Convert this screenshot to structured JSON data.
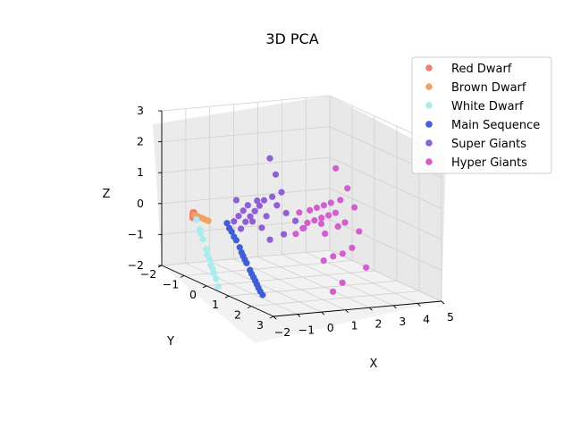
{
  "chart_data": {
    "type": "scatter",
    "projection": "3d",
    "title": "3D PCA",
    "xlabel": "X",
    "ylabel": "Y",
    "zlabel": "Z",
    "xlim": [
      -2,
      5
    ],
    "ylim": [
      -2,
      3
    ],
    "zlim": [
      -2,
      3
    ],
    "x_ticks": [
      "−2",
      "−1",
      "0",
      "1",
      "2",
      "3",
      "4",
      "5"
    ],
    "y_ticks": [
      "−2",
      "−1",
      "0",
      "1",
      "2",
      "3"
    ],
    "z_ticks": [
      "−2",
      "−1",
      "0",
      "1",
      "2",
      "3"
    ],
    "grid": true,
    "legend_position": "top-right",
    "series": [
      {
        "name": "Red Dwarf",
        "color": "#f07c72",
        "points": [
          [
            -1.45,
            -1.2,
            -0.06
          ],
          [
            -1.5,
            -1.15,
            -0.1
          ],
          [
            -1.55,
            -1.1,
            -0.14
          ],
          [
            -1.6,
            -1.05,
            -0.18
          ],
          [
            -1.5,
            -1.1,
            -0.12
          ],
          [
            -1.45,
            -1.15,
            -0.04
          ]
        ]
      },
      {
        "name": "Brown Dwarf",
        "color": "#f4a261",
        "points": [
          [
            -1.3,
            -1.3,
            -0.2
          ],
          [
            -1.2,
            -1.25,
            -0.22
          ],
          [
            -1.1,
            -1.2,
            -0.26
          ],
          [
            -1.0,
            -1.15,
            -0.3
          ],
          [
            -0.9,
            -1.1,
            -0.34
          ],
          [
            -1.15,
            -1.2,
            -0.25
          ],
          [
            -1.05,
            -1.2,
            -0.28
          ],
          [
            -0.95,
            -1.1,
            -0.32
          ]
        ]
      },
      {
        "name": "White Dwarf",
        "color": "#a8eded",
        "points": [
          [
            -1.3,
            -1.2,
            -0.3
          ],
          [
            -1.35,
            -1.0,
            -0.55
          ],
          [
            -1.4,
            -0.8,
            -0.8
          ],
          [
            -1.45,
            -0.6,
            -1.05
          ],
          [
            -1.5,
            -0.4,
            -1.3
          ],
          [
            -1.55,
            -0.2,
            -1.55
          ],
          [
            -1.6,
            0.0,
            -1.8
          ],
          [
            -1.65,
            0.15,
            -2.0
          ],
          [
            -1.5,
            -0.5,
            -1.2
          ],
          [
            -1.4,
            -0.9,
            -0.65
          ],
          [
            -1.55,
            -0.3,
            -1.45
          ],
          [
            -1.6,
            -0.1,
            -1.65
          ]
        ]
      },
      {
        "name": "Main Sequence",
        "color": "#3f5fd6",
        "points": [
          [
            -0.4,
            -0.8,
            -0.35
          ],
          [
            -0.3,
            -0.7,
            -0.6
          ],
          [
            -0.2,
            -0.6,
            -0.85
          ],
          [
            -0.15,
            -0.5,
            -1.05
          ],
          [
            -0.1,
            -0.4,
            -1.3
          ],
          [
            -0.05,
            -0.3,
            -1.5
          ],
          [
            0.0,
            -0.2,
            -1.7
          ],
          [
            0.05,
            -0.1,
            -1.9
          ],
          [
            0.1,
            0.0,
            -2.1
          ],
          [
            0.15,
            0.1,
            -2.3
          ],
          [
            -0.25,
            -0.65,
            -0.75
          ],
          [
            -0.12,
            -0.45,
            -1.2
          ],
          [
            0.02,
            -0.15,
            -1.8
          ],
          [
            0.12,
            0.05,
            -2.2
          ],
          [
            -0.35,
            -0.75,
            -0.5
          ],
          [
            -0.08,
            -0.35,
            -1.4
          ],
          [
            0.08,
            -0.05,
            -2.0
          ],
          [
            0.2,
            0.15,
            -2.4
          ]
        ]
      },
      {
        "name": "Super Giants",
        "color": "#8f5fd6",
        "points": [
          [
            1.2,
            -0.6,
            1.7
          ],
          [
            1.35,
            -0.5,
            1.2
          ],
          [
            1.5,
            -0.4,
            0.65
          ],
          [
            1.3,
            -0.6,
            0.45
          ],
          [
            1.1,
            -0.75,
            0.3
          ],
          [
            1.0,
            -0.85,
            0.1
          ],
          [
            0.9,
            -0.95,
            -0.1
          ],
          [
            0.8,
            -1.05,
            -0.3
          ],
          [
            0.7,
            -1.15,
            -0.5
          ],
          [
            0.6,
            -1.25,
            -0.75
          ],
          [
            1.4,
            -0.5,
            0.2
          ],
          [
            1.6,
            -0.3,
            0.0
          ],
          [
            1.8,
            -0.1,
            -0.2
          ],
          [
            2.0,
            0.05,
            -0.4
          ],
          [
            0.95,
            -0.9,
            0.25
          ],
          [
            0.85,
            -1.0,
            -0.45
          ],
          [
            1.15,
            -0.7,
            -0.2
          ],
          [
            0.75,
            -1.1,
            0.05
          ],
          [
            1.05,
            -0.8,
            -0.6
          ],
          [
            0.65,
            -1.2,
            -0.15
          ],
          [
            1.25,
            -0.65,
            -0.95
          ],
          [
            0.55,
            -1.3,
            -0.35
          ],
          [
            1.55,
            -0.35,
            -0.7
          ],
          [
            0.5,
            -1.35,
            0.15
          ],
          [
            0.45,
            -1.4,
            -0.55
          ]
        ]
      },
      {
        "name": "Hyper Giants",
        "color": "#d35fcf",
        "points": [
          [
            3.2,
            0.2,
            1.5
          ],
          [
            3.5,
            0.4,
            0.9
          ],
          [
            3.3,
            0.3,
            0.5
          ],
          [
            3.0,
            0.2,
            0.4
          ],
          [
            2.8,
            0.1,
            0.3
          ],
          [
            2.6,
            0.0,
            0.2
          ],
          [
            2.4,
            -0.1,
            0.1
          ],
          [
            3.1,
            0.3,
            0.1
          ],
          [
            2.9,
            0.2,
            0.0
          ],
          [
            2.7,
            0.1,
            -0.1
          ],
          [
            2.5,
            0.0,
            -0.2
          ],
          [
            2.3,
            -0.1,
            -0.3
          ],
          [
            3.4,
            0.4,
            -0.2
          ],
          [
            3.2,
            0.3,
            -0.35
          ],
          [
            2.2,
            -0.2,
            -0.5
          ],
          [
            2.0,
            -0.3,
            -0.7
          ],
          [
            3.6,
            0.5,
            -1.0
          ],
          [
            3.3,
            0.4,
            -1.2
          ],
          [
            3.0,
            0.3,
            -1.3
          ],
          [
            2.7,
            0.2,
            -1.45
          ],
          [
            4.0,
            0.7,
            -1.6
          ],
          [
            3.2,
            0.5,
            -2.1
          ],
          [
            2.9,
            0.4,
            -2.4
          ],
          [
            2.6,
            0.2,
            -0.25
          ],
          [
            3.7,
            0.5,
            0.3
          ],
          [
            2.1,
            -0.25,
            0.0
          ],
          [
            3.8,
            0.6,
            -0.45
          ],
          [
            2.8,
            0.15,
            -0.6
          ]
        ]
      }
    ]
  }
}
